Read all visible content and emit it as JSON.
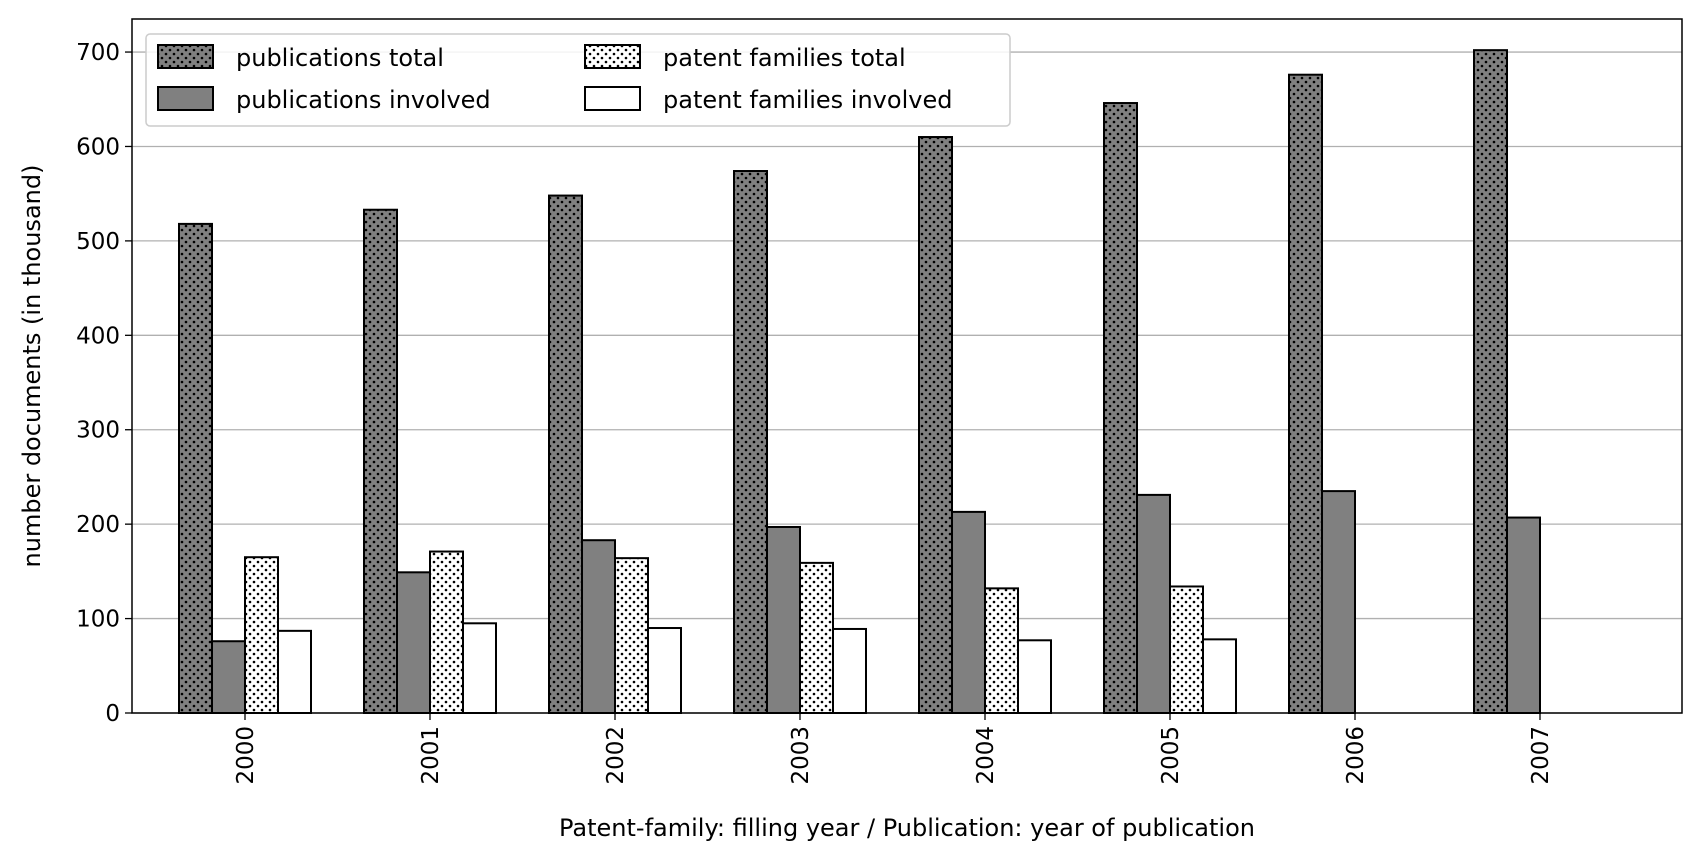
{
  "chart_data": {
    "type": "bar",
    "title": "",
    "xlabel": "Patent-family: filling year / Publication: year of publication",
    "ylabel": "number documents (in thousand)",
    "categories": [
      "2000",
      "2001",
      "2002",
      "2003",
      "2004",
      "2005",
      "2006",
      "2007"
    ],
    "ylim": [
      0,
      735
    ],
    "yticks": [
      0,
      100,
      200,
      300,
      400,
      500,
      600,
      700
    ],
    "grid": "horizontal",
    "legend_position": "top-left",
    "series": [
      {
        "name": "publications total",
        "values": [
          518,
          533,
          548,
          574,
          610,
          646,
          676,
          702
        ],
        "fill": "#808080",
        "pattern": "dots-dark"
      },
      {
        "name": "publications involved",
        "values": [
          76,
          149,
          183,
          197,
          213,
          231,
          235,
          207
        ],
        "fill": "#808080",
        "pattern": "solid"
      },
      {
        "name": "patent families total",
        "values": [
          165,
          171,
          164,
          159,
          132,
          134,
          null,
          null
        ],
        "fill": "#ffffff",
        "pattern": "dots-light"
      },
      {
        "name": "patent families involved",
        "values": [
          87,
          95,
          90,
          89,
          77,
          78,
          null,
          null
        ],
        "fill": "#ffffff",
        "pattern": "solid"
      }
    ]
  }
}
